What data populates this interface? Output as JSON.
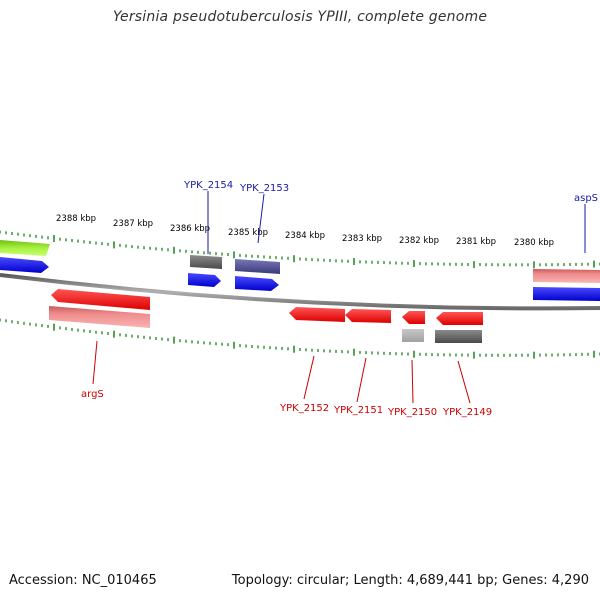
{
  "header": {
    "title": "Yersinia pseudotuberculosis YPIII, complete genome"
  },
  "footer": {
    "accession": "Accession: NC_010465",
    "stats": "Topology: circular; Length: 4,689,441 bp; Genes: 4,290"
  },
  "ticks": [
    "2388 kbp",
    "2387 kbp",
    "2386 kbp",
    "2385 kbp",
    "2384 kbp",
    "2383 kbp",
    "2382 kbp",
    "2381 kbp",
    "2380 kbp"
  ],
  "genes": {
    "ypk_2154": "YPK_2154",
    "ypk_2153": "YPK_2153",
    "asps": "aspS",
    "args": "argS",
    "ypk_2152": "YPK_2152",
    "ypk_2151": "YPK_2151",
    "ypk_2150": "YPK_2150",
    "ypk_2149": "YPK_2149"
  },
  "colors": {
    "forward_cds": "#0000ee",
    "reverse_cds": "#ee0000",
    "forward_label": "#1a1aa6",
    "reverse_label": "#cc0000",
    "backbone": "#8a8a8a",
    "tick": "#2e8b2e",
    "rna": "#90e020"
  }
}
